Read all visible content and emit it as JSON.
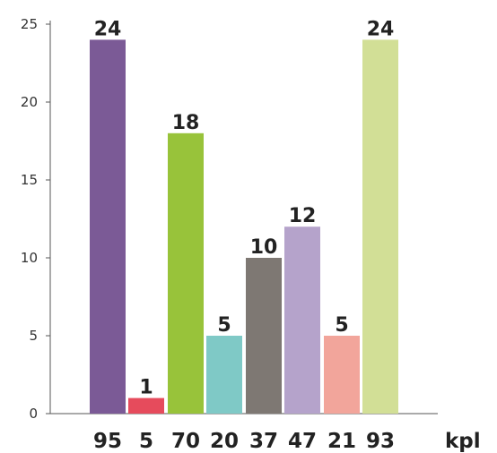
{
  "chart_data": {
    "type": "bar",
    "categories": [
      "95",
      "5",
      "70",
      "20",
      "37",
      "47",
      "21",
      "93"
    ],
    "values": [
      24,
      1,
      18,
      5,
      10,
      12,
      5,
      24
    ],
    "colors": [
      "#7b5a96",
      "#e64b5c",
      "#98c33a",
      "#7fc9c6",
      "#7e7873",
      "#b5a3cb",
      "#f2a59b",
      "#d2df96"
    ],
    "xlabel": "kpl",
    "ylabel": "",
    "ylim": [
      0,
      25
    ],
    "yticks": [
      0,
      5,
      10,
      15,
      20,
      25
    ],
    "grid": false
  }
}
